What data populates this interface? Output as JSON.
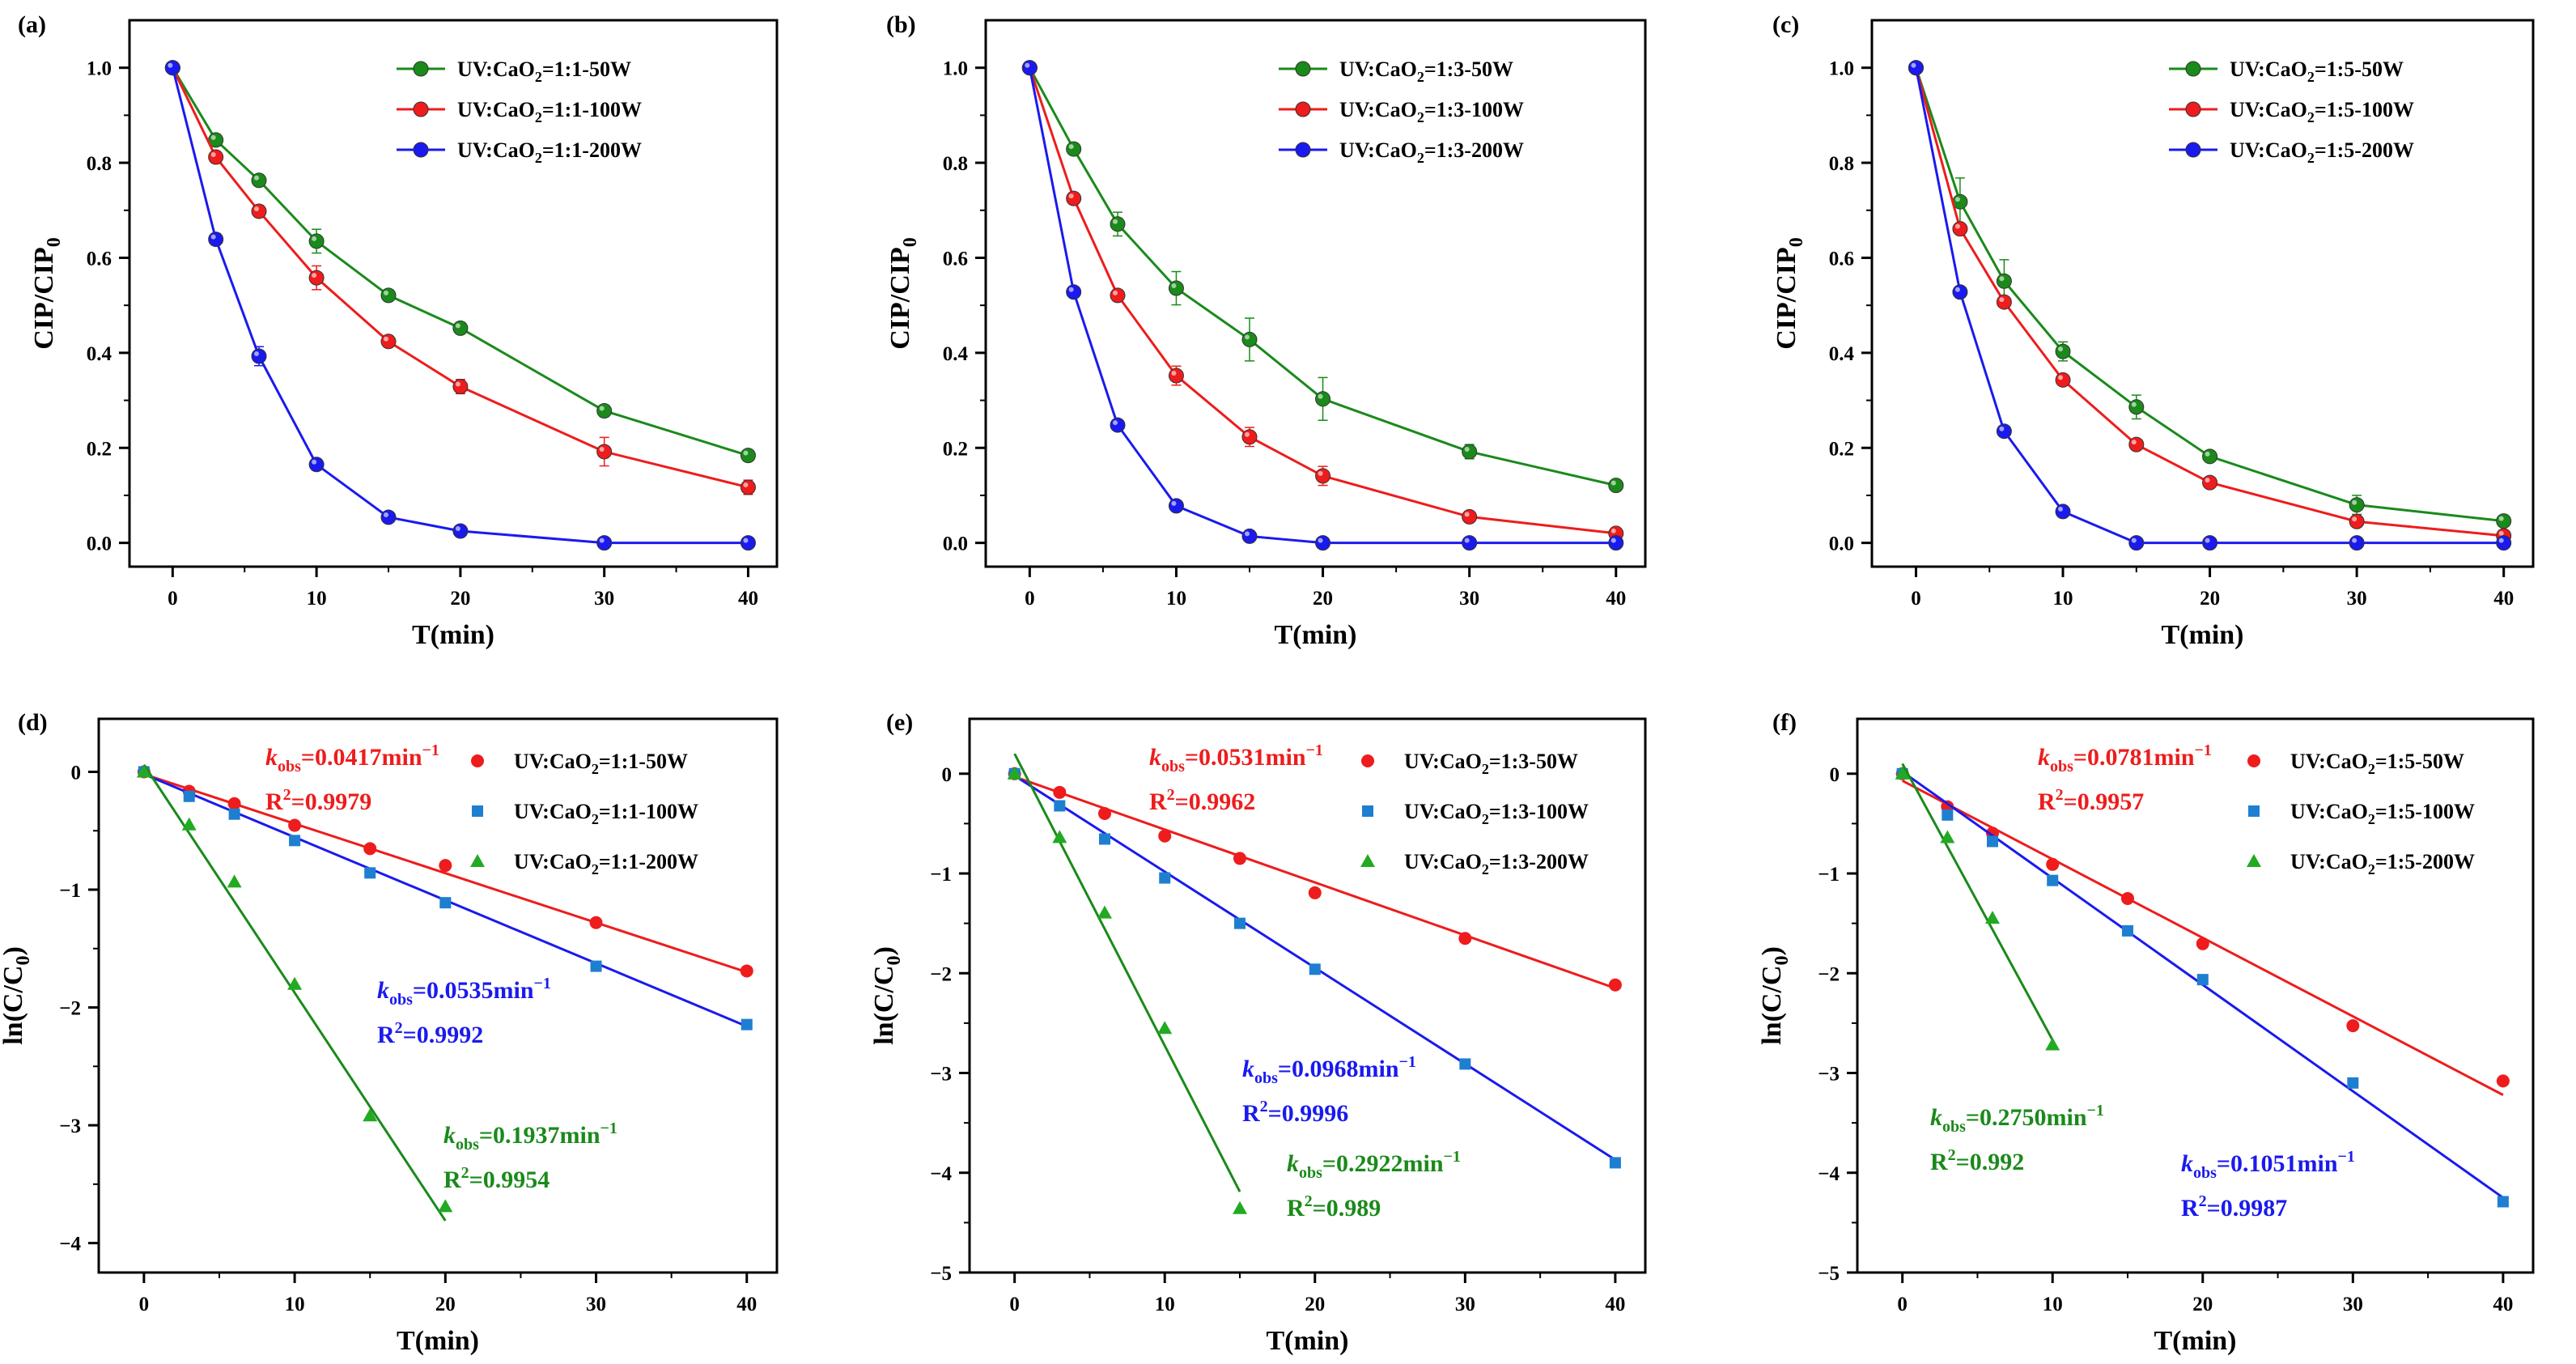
{
  "figure": {
    "panels": [
      "a",
      "b",
      "c",
      "d",
      "e",
      "f"
    ]
  },
  "chart_data": [
    {
      "id": "a",
      "type": "line",
      "panel_label": "(a)",
      "xlabel": "T(min)",
      "ylabel_main": "CIP/CIP",
      "ylabel_sub": "0",
      "xlim": [
        -3,
        42
      ],
      "ylim": [
        -0.05,
        1.1
      ],
      "xticks": [
        0,
        10,
        20,
        30,
        40
      ],
      "yticks": [
        0.0,
        0.2,
        0.4,
        0.6,
        0.8,
        1.0
      ],
      "ytick_labels": [
        "0.0",
        "0.2",
        "0.4",
        "0.6",
        "0.8",
        "1.0"
      ],
      "legend_position": "top-right",
      "series": [
        {
          "name": "UV:CaO2=1:1-50W",
          "name_pre": "UV:CaO",
          "name_sub": "2",
          "name_post": "=1:1-50W",
          "color": "#1a8a1a",
          "x": [
            0,
            3,
            6,
            10,
            15,
            20,
            30,
            40
          ],
          "y": [
            1.0,
            0.848,
            0.763,
            0.635,
            0.521,
            0.452,
            0.278,
            0.184
          ],
          "err": [
            0,
            0.012,
            0.012,
            0.025,
            0.012,
            0.012,
            0.012,
            0.012
          ]
        },
        {
          "name": "UV:CaO2=1:1-100W",
          "name_pre": "UV:CaO",
          "name_sub": "2",
          "name_post": "=1:1-100W",
          "color": "#ee1c1c",
          "x": [
            0,
            3,
            6,
            10,
            15,
            20,
            30,
            40
          ],
          "y": [
            1.0,
            0.812,
            0.698,
            0.558,
            0.424,
            0.329,
            0.192,
            0.117
          ],
          "err": [
            0,
            0.012,
            0.012,
            0.025,
            0.012,
            0.015,
            0.03,
            0.015
          ]
        },
        {
          "name": "UV:CaO2=1:1-200W",
          "name_pre": "UV:CaO",
          "name_sub": "2",
          "name_post": "=1:1-200W",
          "color": "#1a1aee",
          "x": [
            0,
            3,
            6,
            10,
            15,
            20,
            30,
            40
          ],
          "y": [
            1.0,
            0.639,
            0.393,
            0.165,
            0.054,
            0.025,
            0.0,
            0.0
          ],
          "err": [
            0,
            0.012,
            0.02,
            0.012,
            0.01,
            0.005,
            0,
            0
          ]
        }
      ]
    },
    {
      "id": "b",
      "type": "line",
      "panel_label": "(b)",
      "xlabel": "T(min)",
      "ylabel_main": "CIP/CIP",
      "ylabel_sub": "0",
      "xlim": [
        -3,
        42
      ],
      "ylim": [
        -0.05,
        1.1
      ],
      "xticks": [
        0,
        10,
        20,
        30,
        40
      ],
      "yticks": [
        0.0,
        0.2,
        0.4,
        0.6,
        0.8,
        1.0
      ],
      "ytick_labels": [
        "0.0",
        "0.2",
        "0.4",
        "0.6",
        "0.8",
        "1.0"
      ],
      "legend_position": "top-right",
      "series": [
        {
          "name": "UV:CaO2=1:3-50W",
          "name_pre": "UV:CaO",
          "name_sub": "2",
          "name_post": "=1:3-50W",
          "color": "#1a8a1a",
          "x": [
            0,
            3,
            6,
            10,
            15,
            20,
            30,
            40
          ],
          "y": [
            1.0,
            0.829,
            0.671,
            0.536,
            0.428,
            0.303,
            0.192,
            0.121
          ],
          "err": [
            0,
            0.012,
            0.025,
            0.035,
            0.045,
            0.045,
            0.015,
            0.008
          ]
        },
        {
          "name": "UV:CaO2=1:3-100W",
          "name_pre": "UV:CaO",
          "name_sub": "2",
          "name_post": "=1:3-100W",
          "color": "#ee1c1c",
          "x": [
            0,
            3,
            6,
            10,
            15,
            20,
            30,
            40
          ],
          "y": [
            1.0,
            0.725,
            0.521,
            0.352,
            0.223,
            0.141,
            0.055,
            0.02
          ],
          "err": [
            0,
            0.012,
            0.012,
            0.02,
            0.02,
            0.02,
            0.008,
            0.005
          ]
        },
        {
          "name": "UV:CaO2=1:3-200W",
          "name_pre": "UV:CaO",
          "name_sub": "2",
          "name_post": "=1:3-200W",
          "color": "#1a1aee",
          "x": [
            0,
            3,
            6,
            10,
            15,
            20,
            30,
            40
          ],
          "y": [
            1.0,
            0.528,
            0.248,
            0.078,
            0.014,
            0.0,
            0.0,
            0.0
          ],
          "err": [
            0,
            0.01,
            0.01,
            0.008,
            0.005,
            0,
            0,
            0
          ]
        }
      ]
    },
    {
      "id": "c",
      "type": "line",
      "panel_label": "(c)",
      "xlabel": "T(min)",
      "ylabel_main": "CIP/CIP",
      "ylabel_sub": "0",
      "xlim": [
        -3,
        42
      ],
      "ylim": [
        -0.05,
        1.1
      ],
      "xticks": [
        0,
        10,
        20,
        30,
        40
      ],
      "yticks": [
        0.0,
        0.2,
        0.4,
        0.6,
        0.8,
        1.0
      ],
      "ytick_labels": [
        "0.0",
        "0.2",
        "0.4",
        "0.6",
        "0.8",
        "1.0"
      ],
      "legend_position": "top-right",
      "series": [
        {
          "name": "UV:CaO2=1:5-50W",
          "name_pre": "UV:CaO",
          "name_sub": "2",
          "name_post": "=1:5-50W",
          "color": "#1a8a1a",
          "x": [
            0,
            3,
            6,
            10,
            15,
            20,
            30,
            40
          ],
          "y": [
            1.0,
            0.718,
            0.551,
            0.403,
            0.286,
            0.182,
            0.08,
            0.046
          ],
          "err": [
            0,
            0.05,
            0.045,
            0.02,
            0.025,
            0.01,
            0.02,
            0.008
          ]
        },
        {
          "name": "UV:CaO2=1:5-100W",
          "name_pre": "UV:CaO",
          "name_sub": "2",
          "name_post": "=1:5-100W",
          "color": "#ee1c1c",
          "x": [
            0,
            3,
            6,
            10,
            15,
            20,
            30,
            40
          ],
          "y": [
            1.0,
            0.661,
            0.507,
            0.343,
            0.207,
            0.127,
            0.045,
            0.015
          ],
          "err": [
            0,
            0.01,
            0.01,
            0.01,
            0.01,
            0.01,
            0.008,
            0.005
          ]
        },
        {
          "name": "UV:CaO2=1:5-200W",
          "name_pre": "UV:CaO",
          "name_sub": "2",
          "name_post": "=1:5-200W",
          "color": "#1a1aee",
          "x": [
            0,
            3,
            6,
            10,
            15,
            20,
            30,
            40
          ],
          "y": [
            1.0,
            0.528,
            0.235,
            0.066,
            0.0,
            0.0,
            0.0,
            0.0
          ],
          "err": [
            0,
            0.008,
            0.008,
            0.005,
            0,
            0,
            0,
            0
          ]
        }
      ]
    },
    {
      "id": "d",
      "type": "scatter",
      "panel_label": "(d)",
      "xlabel": "T(min)",
      "ylabel_main": "ln(C/C",
      "ylabel_sub": "0",
      "ylabel_post": ")",
      "xlim": [
        -3,
        42
      ],
      "ylim": [
        -4.25,
        0.45
      ],
      "xticks": [
        0,
        10,
        20,
        30,
        40
      ],
      "yticks": [
        0,
        -1,
        -2,
        -3,
        -4
      ],
      "ytick_labels": [
        "0",
        "−1",
        "−2",
        "−3",
        "−4"
      ],
      "legend_position": "top-right",
      "series": [
        {
          "name": "UV:CaO2=1:1-50W",
          "name_pre": "UV:CaO",
          "name_sub": "2",
          "name_post": "=1:1-50W",
          "color": "#ee1c1c",
          "marker": "circle",
          "x": [
            0,
            3,
            6,
            10,
            15,
            20,
            30,
            40
          ],
          "y": [
            0.0,
            -0.165,
            -0.27,
            -0.454,
            -0.652,
            -0.795,
            -1.28,
            -1.69
          ],
          "fit": [
            [
              0,
              -0.02
            ],
            [
              40,
              -1.7
            ]
          ],
          "k_label": "0.0417min",
          "r_label": "0.9979"
        },
        {
          "name": "UV:CaO2=1:1-100W",
          "name_pre": "UV:CaO",
          "name_sub": "2",
          "name_post": "=1:1-100W",
          "color": "#1e7fd0",
          "fit_color": "#1a1aee",
          "marker": "square",
          "x": [
            0,
            3,
            6,
            10,
            15,
            20,
            30,
            40
          ],
          "y": [
            0.0,
            -0.208,
            -0.359,
            -0.583,
            -0.858,
            -1.111,
            -1.65,
            -2.145
          ],
          "fit": [
            [
              0,
              -0.02
            ],
            [
              40,
              -2.16
            ]
          ],
          "k_label": "0.0535min",
          "r_label": "0.9992"
        },
        {
          "name": "UV:CaO2=1:1-200W",
          "name_pre": "UV:CaO",
          "name_sub": "2",
          "name_post": "=1:1-200W",
          "color": "#22aa22",
          "fit_color": "#1a8a1a",
          "marker": "triangle",
          "x": [
            0,
            3,
            6,
            10,
            15,
            20
          ],
          "y": [
            0.0,
            -0.448,
            -0.934,
            -1.802,
            -2.919,
            -3.689
          ],
          "fit": [
            [
              0,
              0.06
            ],
            [
              20,
              -3.81
            ]
          ],
          "k_label": "0.1937min",
          "r_label": "0.9954"
        }
      ],
      "annotations": [
        {
          "color": "#ee1c1c",
          "k": "0.0417min",
          "r": "0.9979"
        },
        {
          "color": "#1a1aee",
          "k": "0.0535min",
          "r": "0.9992"
        },
        {
          "color": "#1a8a1a",
          "k": "0.1937min",
          "r": "0.9954"
        }
      ]
    },
    {
      "id": "e",
      "type": "scatter",
      "panel_label": "(e)",
      "xlabel": "T(min)",
      "ylabel_main": "ln(C/C",
      "ylabel_sub": "0",
      "ylabel_post": ")",
      "xlim": [
        -3,
        42
      ],
      "ylim": [
        -5.0,
        0.55
      ],
      "xticks": [
        0,
        10,
        20,
        30,
        40
      ],
      "yticks": [
        0,
        -1,
        -2,
        -3,
        -4,
        -5
      ],
      "ytick_labels": [
        "0",
        "−1",
        "−2",
        "−3",
        "−4",
        "−5"
      ],
      "legend_position": "top-right",
      "series": [
        {
          "name": "UV:CaO2=1:3-50W",
          "name_pre": "UV:CaO",
          "name_sub": "2",
          "name_post": "=1:3-50W",
          "color": "#ee1c1c",
          "marker": "circle",
          "x": [
            0,
            3,
            6,
            10,
            15,
            20,
            30,
            40
          ],
          "y": [
            0.0,
            -0.187,
            -0.399,
            -0.624,
            -0.849,
            -1.194,
            -1.651,
            -2.117
          ],
          "fit": [
            [
              0,
              -0.03
            ],
            [
              40,
              -2.15
            ]
          ],
          "k_label": "0.0531min",
          "r_label": "0.9962"
        },
        {
          "name": "UV:CaO2=1:3-100W",
          "name_pre": "UV:CaO",
          "name_sub": "2",
          "name_post": "=1:3-100W",
          "color": "#1e7fd0",
          "fit_color": "#1a1aee",
          "marker": "square",
          "x": [
            0,
            3,
            6,
            10,
            15,
            20,
            30,
            40
          ],
          "y": [
            0.0,
            -0.322,
            -0.655,
            -1.045,
            -1.5,
            -1.96,
            -2.91,
            -3.9
          ],
          "fit": [
            [
              0,
              -0.02
            ],
            [
              40,
              -3.87
            ]
          ],
          "k_label": "0.0968min",
          "r_label": "0.9996"
        },
        {
          "name": "UV:CaO2=1:3-200W",
          "name_pre": "UV:CaO",
          "name_sub": "2",
          "name_post": "=1:3-200W",
          "color": "#22aa22",
          "fit_color": "#1a8a1a",
          "marker": "triangle",
          "x": [
            0,
            3,
            6,
            10,
            15
          ],
          "y": [
            0.0,
            -0.638,
            -1.394,
            -2.552,
            -4.357
          ],
          "fit": [
            [
              0,
              0.2
            ],
            [
              15,
              -4.19
            ]
          ],
          "k_label": "0.2922min",
          "r_label": "0.989"
        }
      ],
      "annotations": [
        {
          "color": "#ee1c1c",
          "k": "0.0531min",
          "r": "0.9962"
        },
        {
          "color": "#1a1aee",
          "k": "0.0968min",
          "r": "0.9996"
        },
        {
          "color": "#1a8a1a",
          "k": "0.2922min",
          "r": "0.989"
        }
      ]
    },
    {
      "id": "f",
      "type": "scatter",
      "panel_label": "(f)",
      "xlabel": "T(min)",
      "ylabel_main": "ln(C/C",
      "ylabel_sub": "0",
      "ylabel_post": ")",
      "xlim": [
        -3,
        42
      ],
      "ylim": [
        -5.0,
        0.55
      ],
      "xticks": [
        0,
        10,
        20,
        30,
        40
      ],
      "yticks": [
        0,
        -1,
        -2,
        -3,
        -4,
        -5
      ],
      "ytick_labels": [
        "0",
        "−1",
        "−2",
        "−3",
        "−4",
        "−5"
      ],
      "legend_position": "top-right",
      "series": [
        {
          "name": "UV:CaO2=1:5-50W",
          "name_pre": "UV:CaO",
          "name_sub": "2",
          "name_post": "=1:5-50W",
          "color": "#ee1c1c",
          "marker": "circle",
          "x": [
            0,
            3,
            6,
            10,
            15,
            20,
            30,
            40
          ],
          "y": [
            0.0,
            -0.331,
            -0.596,
            -0.909,
            -1.251,
            -1.704,
            -2.526,
            -3.08
          ],
          "fit": [
            [
              0,
              -0.07
            ],
            [
              40,
              -3.22
            ]
          ],
          "k_label": "0.0781min",
          "r_label": "0.9957"
        },
        {
          "name": "UV:CaO2=1:5-100W",
          "name_pre": "UV:CaO",
          "name_sub": "2",
          "name_post": "=1:5-100W",
          "color": "#1e7fd0",
          "fit_color": "#1a1aee",
          "marker": "square",
          "x": [
            0,
            3,
            6,
            10,
            15,
            20,
            30,
            40
          ],
          "y": [
            0.0,
            -0.414,
            -0.679,
            -1.07,
            -1.575,
            -2.064,
            -3.1,
            -4.29
          ],
          "fit": [
            [
              0,
              0.02
            ],
            [
              40,
              -4.25
            ]
          ],
          "k_label": "0.1051min",
          "r_label": "0.9987"
        },
        {
          "name": "UV:CaO2=1:5-200W",
          "name_pre": "UV:CaO",
          "name_sub": "2",
          "name_post": "=1:5-200W",
          "color": "#22aa22",
          "fit_color": "#1a8a1a",
          "marker": "triangle",
          "x": [
            0,
            3,
            6,
            10
          ],
          "y": [
            0.0,
            -0.639,
            -1.447,
            -2.716
          ],
          "fit": [
            [
              0,
              0.1
            ],
            [
              10,
              -2.67
            ]
          ],
          "k_label": "0.2750min",
          "r_label": "0.992"
        }
      ],
      "annotations": [
        {
          "color": "#ee1c1c",
          "k": "0.0781min",
          "r": "0.9957"
        },
        {
          "color": "#1a1aee",
          "k": "0.1051min",
          "r": "0.9987"
        },
        {
          "color": "#1a8a1a",
          "k": "0.2750min",
          "r": "0.992"
        }
      ]
    }
  ],
  "annotation_text": {
    "k_symbol": "k",
    "k_sub": "obs",
    "k_eq": "=",
    "k_sup": "−1",
    "r_prefix": "R",
    "r_sup": "2",
    "r_eq": "="
  }
}
